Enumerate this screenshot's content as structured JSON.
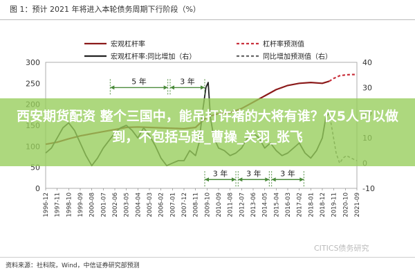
{
  "header": {
    "title": "图 1：预计 2021 年将进入本轮债务周期下行阶段（%）"
  },
  "banner": {
    "text": "西安期货配资 整个三国中，能吊打许褚的大将有谁？仅5人可以做到，不包括马超_曹操_关羽_张飞"
  },
  "footer": {
    "source": "资料来源：社科院，Wind，中信证券研究部预测",
    "watermark": "CITICS债务研究"
  },
  "chart_data": {
    "type": "line",
    "legend": [
      {
        "label": "宏观杠杆率",
        "color": "#8B1A1A",
        "style": "solid"
      },
      {
        "label": "杠杆率预测值",
        "color": "#C9303C",
        "style": "dashed"
      },
      {
        "label": "宏观杠杆率:同比增加（右）",
        "color": "#222222",
        "style": "solid"
      },
      {
        "label": "同比增加预测值（右）",
        "color": "#666666",
        "style": "dashed"
      }
    ],
    "x_ticks": [
      "1996-12",
      "1997-11",
      "1998-10",
      "1999-09",
      "2000-08",
      "2001-07",
      "2002-06",
      "2003-05",
      "2004-04",
      "2005-03",
      "2006-02",
      "2007-01",
      "2007-12",
      "2008-11",
      "2009-10",
      "2010-09",
      "2011-08",
      "2012-07",
      "2013-06",
      "2014-05",
      "2015-04",
      "2016-03",
      "2017-02",
      "2018-01",
      "2018-12",
      "2019-11",
      "2020-10",
      "2021-09"
    ],
    "y_left": {
      "ticks": [
        0,
        50,
        100,
        150,
        200,
        250,
        300
      ],
      "range": [
        0,
        300
      ]
    },
    "y_right": {
      "ticks": [
        -10,
        0,
        10,
        20,
        30,
        40
      ],
      "range": [
        -10,
        40
      ]
    },
    "annotations": [
      {
        "text": "5 年"
      },
      {
        "text": "3 年"
      },
      {
        "text": "3 年"
      },
      {
        "text": "3 年"
      },
      {
        "text": "3 年"
      }
    ],
    "series": [
      {
        "name": "宏观杠杆率",
        "axis": "left",
        "x": [
          0,
          1,
          2,
          3,
          4,
          5,
          6,
          7,
          8,
          9,
          10,
          11,
          12,
          13,
          14,
          15,
          16,
          17,
          18,
          19,
          20,
          21,
          22,
          23,
          24,
          24.6
        ],
        "values": [
          105,
          110,
          118,
          125,
          130,
          135,
          140,
          145,
          146,
          145,
          144,
          143,
          142,
          145,
          170,
          178,
          180,
          190,
          205,
          220,
          235,
          245,
          250,
          252,
          250,
          255
        ]
      },
      {
        "name": "杠杆率预测值",
        "axis": "left",
        "x": [
          24.6,
          25,
          25.5,
          26,
          26.5,
          27
        ],
        "values": [
          255,
          262,
          268,
          270,
          271,
          271
        ]
      },
      {
        "name": "宏观杠杆率:同比增加（右）",
        "axis": "right",
        "x": [
          0,
          0.5,
          1,
          1.5,
          2,
          2.5,
          3,
          3.5,
          4,
          4.5,
          5,
          5.5,
          6,
          6.5,
          7,
          7.5,
          8,
          8.5,
          9,
          9.5,
          10,
          10.5,
          11,
          11.5,
          12,
          12.5,
          13,
          13.3,
          13.6,
          13.9,
          14.1,
          14.3,
          14.6,
          15,
          15.5,
          16,
          16.5,
          17,
          17.5,
          18,
          18.5,
          19,
          19.5,
          20,
          20.5,
          21,
          21.5,
          22,
          22.5,
          23,
          23.5,
          24,
          24.3,
          24.6
        ],
        "values": [
          4,
          6,
          10,
          14,
          16,
          13,
          8,
          3,
          -1,
          2,
          6,
          9,
          12,
          14,
          15,
          13,
          10,
          14,
          11,
          7,
          2,
          -1,
          0,
          1,
          1,
          5,
          3,
          8,
          20,
          30,
          32,
          18,
          10,
          6,
          5,
          3,
          4,
          6,
          10,
          12,
          10,
          6,
          8,
          5,
          3,
          4,
          6,
          8,
          4,
          2,
          5,
          10,
          18,
          20
        ]
      },
      {
        "name": "同比增加预测值（右）",
        "axis": "right",
        "x": [
          24.6,
          24.9,
          25.2,
          25.5,
          25.8,
          26.1,
          26.5,
          27
        ],
        "values": [
          20,
          12,
          4,
          0,
          2,
          3,
          2,
          1
        ]
      }
    ]
  }
}
